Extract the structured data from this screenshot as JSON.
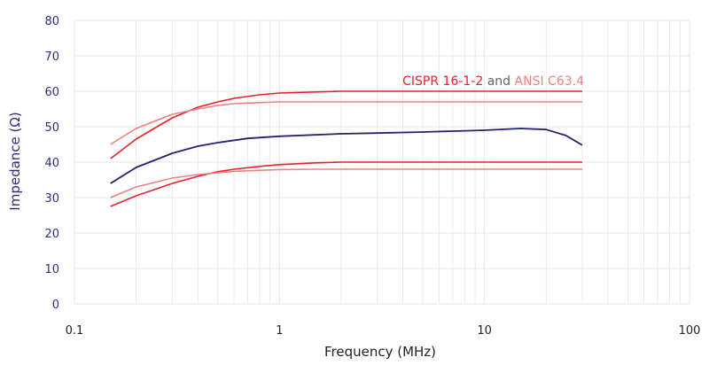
{
  "chart_data": {
    "type": "line",
    "xlabel": "Frequency (MHz)",
    "ylabel": "Impedance (Ω)",
    "x_scale": "log",
    "xlim": [
      0.1,
      100
    ],
    "ylim": [
      0,
      80
    ],
    "x_ticks": [
      0.1,
      1,
      10,
      100
    ],
    "x_tick_labels": [
      "0.1",
      "1",
      "10",
      "100"
    ],
    "y_ticks": [
      0,
      10,
      20,
      30,
      40,
      50,
      60,
      70,
      80
    ],
    "y_tick_labels": [
      "0",
      "10",
      "20",
      "30",
      "40",
      "50",
      "60",
      "70",
      "80"
    ],
    "grid": true,
    "legend_position": "top-right",
    "legend": {
      "entries": [
        {
          "text": "CISPR 16-1-2",
          "color": "#e8202a"
        },
        {
          "text": " and ",
          "color": "#666666"
        },
        {
          "text": "ANSI C63.4",
          "color": "#f08080"
        }
      ]
    },
    "colors": {
      "measured": "#1f2470",
      "cispr": "#e8202a",
      "ansi": "#f08080",
      "axis_text": "#2b2f7a",
      "grid": "#e6e6e6"
    },
    "series": [
      {
        "color": "#e8202a",
        "points": [
          [
            0.15,
            41
          ],
          [
            0.2,
            46.5
          ],
          [
            0.3,
            52.5
          ],
          [
            0.4,
            55.5
          ],
          [
            0.5,
            57
          ],
          [
            0.6,
            58
          ],
          [
            0.8,
            59
          ],
          [
            1,
            59.5
          ],
          [
            1.5,
            59.8
          ],
          [
            2,
            60
          ],
          [
            30,
            60
          ]
        ]
      },
      {
        "color": "#f08080",
        "points": [
          [
            0.15,
            45
          ],
          [
            0.2,
            49.5
          ],
          [
            0.3,
            53.5
          ],
          [
            0.4,
            55
          ],
          [
            0.5,
            56
          ],
          [
            0.6,
            56.5
          ],
          [
            0.8,
            56.8
          ],
          [
            1,
            57
          ],
          [
            1.5,
            57
          ],
          [
            30,
            57
          ]
        ]
      },
      {
        "color": "#1f2470",
        "points": [
          [
            0.15,
            34
          ],
          [
            0.2,
            38.5
          ],
          [
            0.3,
            42.5
          ],
          [
            0.4,
            44.5
          ],
          [
            0.5,
            45.5
          ],
          [
            0.7,
            46.7
          ],
          [
            1,
            47.3
          ],
          [
            2,
            48
          ],
          [
            3,
            48.2
          ],
          [
            5,
            48.5
          ],
          [
            10,
            49
          ],
          [
            15,
            49.5
          ],
          [
            20,
            49.2
          ],
          [
            25,
            47.5
          ],
          [
            30,
            44.8
          ]
        ]
      },
      {
        "color": "#e8202a",
        "points": [
          [
            0.15,
            27.5
          ],
          [
            0.2,
            30.5
          ],
          [
            0.3,
            34
          ],
          [
            0.4,
            36
          ],
          [
            0.5,
            37.3
          ],
          [
            0.6,
            38
          ],
          [
            0.8,
            38.8
          ],
          [
            1,
            39.3
          ],
          [
            1.5,
            39.8
          ],
          [
            2,
            40
          ],
          [
            30,
            40
          ]
        ]
      },
      {
        "color": "#f08080",
        "points": [
          [
            0.15,
            30
          ],
          [
            0.2,
            33
          ],
          [
            0.3,
            35.5
          ],
          [
            0.4,
            36.5
          ],
          [
            0.5,
            37
          ],
          [
            0.6,
            37.4
          ],
          [
            0.8,
            37.7
          ],
          [
            1,
            37.9
          ],
          [
            1.5,
            38
          ],
          [
            30,
            38
          ]
        ]
      }
    ]
  }
}
